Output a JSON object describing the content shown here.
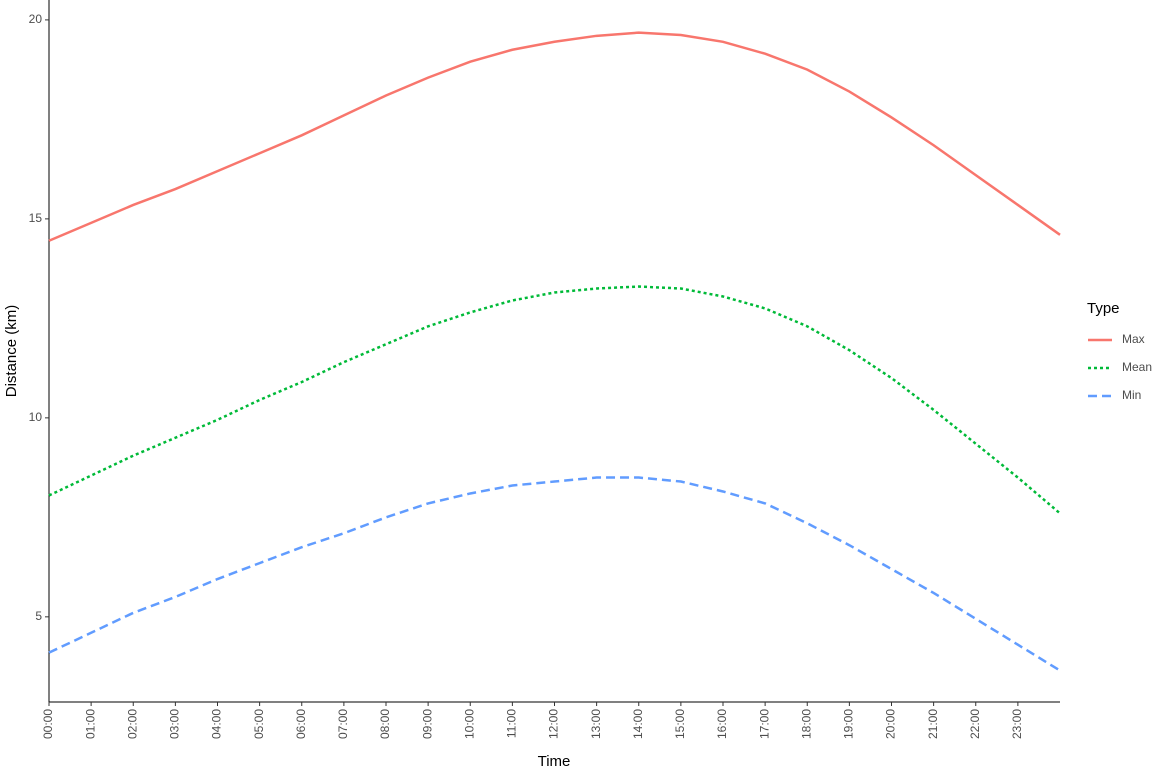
{
  "chart_data": {
    "type": "line",
    "x_label": "Time",
    "y_label": "Distance (km)",
    "legend_title": "Type",
    "x": [
      0,
      1,
      2,
      3,
      4,
      5,
      6,
      7,
      8,
      9,
      10,
      11,
      12,
      13,
      14,
      15,
      16,
      17,
      18,
      19,
      20,
      21,
      22,
      23,
      24
    ],
    "series": [
      {
        "name": "Max",
        "color": "#F8766D",
        "dash": "solid",
        "values": [
          14.45,
          14.9,
          15.35,
          15.75,
          16.2,
          16.65,
          17.1,
          17.6,
          18.1,
          18.55,
          18.95,
          19.25,
          19.45,
          19.6,
          19.68,
          19.62,
          19.45,
          19.15,
          18.75,
          18.2,
          17.55,
          16.85,
          16.1,
          15.35,
          14.6
        ]
      },
      {
        "name": "Mean",
        "color": "#00BA38",
        "dash": "dotted",
        "values": [
          8.05,
          8.55,
          9.05,
          9.5,
          9.95,
          10.45,
          10.9,
          11.4,
          11.85,
          12.3,
          12.65,
          12.95,
          13.15,
          13.25,
          13.3,
          13.25,
          13.05,
          12.75,
          12.3,
          11.7,
          11.0,
          10.2,
          9.35,
          8.5,
          7.6
        ]
      },
      {
        "name": "Min",
        "color": "#619CFF",
        "dash": "dashed",
        "values": [
          4.1,
          4.6,
          5.1,
          5.5,
          5.95,
          6.35,
          6.75,
          7.1,
          7.5,
          7.85,
          8.1,
          8.3,
          8.4,
          8.5,
          8.5,
          8.4,
          8.15,
          7.85,
          7.35,
          6.8,
          6.2,
          5.6,
          4.95,
          4.3,
          3.65
        ]
      }
    ],
    "xlim": [
      0,
      24
    ],
    "xticks": [
      {
        "value": 0,
        "label": "00:00"
      },
      {
        "value": 1,
        "label": "01:00"
      },
      {
        "value": 2,
        "label": "02:00"
      },
      {
        "value": 3,
        "label": "03:00"
      },
      {
        "value": 4,
        "label": "04:00"
      },
      {
        "value": 5,
        "label": "05:00"
      },
      {
        "value": 6,
        "label": "06:00"
      },
      {
        "value": 7,
        "label": "07:00"
      },
      {
        "value": 8,
        "label": "08:00"
      },
      {
        "value": 9,
        "label": "09:00"
      },
      {
        "value": 10,
        "label": "10:00"
      },
      {
        "value": 11,
        "label": "11:00"
      },
      {
        "value": 12,
        "label": "12:00"
      },
      {
        "value": 13,
        "label": "13:00"
      },
      {
        "value": 14,
        "label": "14:00"
      },
      {
        "value": 15,
        "label": "15:00"
      },
      {
        "value": 16,
        "label": "16:00"
      },
      {
        "value": 17,
        "label": "17:00"
      },
      {
        "value": 18,
        "label": "18:00"
      },
      {
        "value": 19,
        "label": "19:00"
      },
      {
        "value": 20,
        "label": "20:00"
      },
      {
        "value": 21,
        "label": "21:00"
      },
      {
        "value": 22,
        "label": "22:00"
      },
      {
        "value": 23,
        "label": "23:00"
      }
    ],
    "ylim": [
      2.86,
      20.5
    ],
    "yticks": [
      5,
      10,
      15,
      20
    ],
    "grid": false,
    "legend": "right"
  }
}
